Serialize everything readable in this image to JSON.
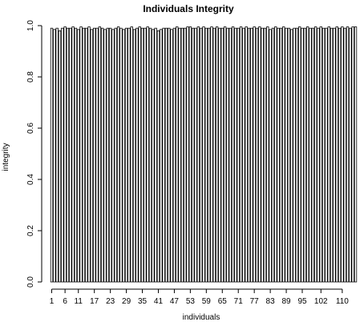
{
  "chart_data": {
    "type": "bar",
    "title": "Individuals Integrity",
    "xlabel": "individuals",
    "ylabel": "integrity",
    "ylim": [
      0,
      1
    ],
    "y_ticks": [
      "0.0",
      "0.2",
      "0.4",
      "0.6",
      "0.8",
      "1.0"
    ],
    "x_tick_labels": [
      "1",
      "6",
      "11",
      "17",
      "23",
      "29",
      "35",
      "41",
      "47",
      "53",
      "59",
      "65",
      "71",
      "77",
      "83",
      "89",
      "95",
      "102",
      "110"
    ],
    "categories": [
      "1",
      "2",
      "3",
      "4",
      "5",
      "6",
      "7",
      "8",
      "9",
      "10",
      "11",
      "12",
      "13",
      "14",
      "15",
      "16",
      "17",
      "18",
      "19",
      "20",
      "21",
      "22",
      "23",
      "24",
      "25",
      "26",
      "27",
      "28",
      "29",
      "30",
      "31",
      "32",
      "33",
      "34",
      "35",
      "36",
      "37",
      "38",
      "39",
      "40",
      "41",
      "42",
      "43",
      "44",
      "45",
      "46",
      "47",
      "48",
      "49",
      "50",
      "51",
      "52",
      "53",
      "54",
      "55",
      "56",
      "57",
      "58",
      "59",
      "60",
      "61",
      "62",
      "63",
      "64",
      "65",
      "66",
      "67",
      "68",
      "69",
      "70",
      "71",
      "72",
      "73",
      "74",
      "75",
      "76",
      "77",
      "78",
      "79",
      "80",
      "81",
      "82",
      "83",
      "84",
      "85",
      "86",
      "87",
      "88",
      "89",
      "90",
      "91",
      "92",
      "93",
      "94",
      "95",
      "96",
      "97",
      "98",
      "99",
      "100",
      "101",
      "102",
      "103",
      "104",
      "105",
      "106",
      "107",
      "108",
      "109",
      "110",
      "111",
      "112",
      "113",
      "114",
      "115"
    ],
    "values": [
      0.99,
      0.985,
      0.99,
      0.98,
      0.99,
      0.995,
      0.99,
      0.99,
      0.995,
      0.99,
      0.985,
      0.995,
      0.99,
      0.99,
      0.995,
      0.985,
      0.99,
      0.99,
      0.995,
      0.99,
      0.985,
      0.99,
      0.99,
      0.985,
      0.99,
      0.995,
      0.99,
      0.985,
      0.99,
      0.99,
      0.995,
      0.985,
      0.99,
      0.995,
      0.99,
      0.99,
      0.995,
      0.99,
      0.985,
      0.99,
      0.98,
      0.985,
      0.99,
      0.99,
      0.99,
      0.985,
      0.99,
      0.995,
      0.99,
      0.99,
      0.99,
      0.995,
      0.995,
      0.99,
      0.99,
      0.995,
      0.99,
      0.995,
      0.99,
      0.99,
      0.995,
      0.99,
      0.995,
      0.99,
      0.99,
      0.995,
      0.99,
      0.99,
      0.995,
      0.99,
      0.99,
      0.995,
      0.99,
      0.995,
      0.99,
      0.99,
      0.995,
      0.99,
      0.995,
      0.99,
      0.99,
      0.995,
      0.985,
      0.99,
      0.995,
      0.99,
      0.99,
      0.995,
      0.99,
      0.99,
      0.985,
      0.99,
      0.99,
      0.995,
      0.99,
      0.99,
      0.995,
      0.99,
      0.99,
      0.995,
      0.99,
      0.995,
      0.99,
      0.99,
      0.995,
      0.99,
      0.99,
      0.995,
      0.99,
      0.995,
      0.99,
      0.995,
      0.99,
      0.995,
      0.995
    ],
    "grid": false,
    "legend": "none"
  }
}
